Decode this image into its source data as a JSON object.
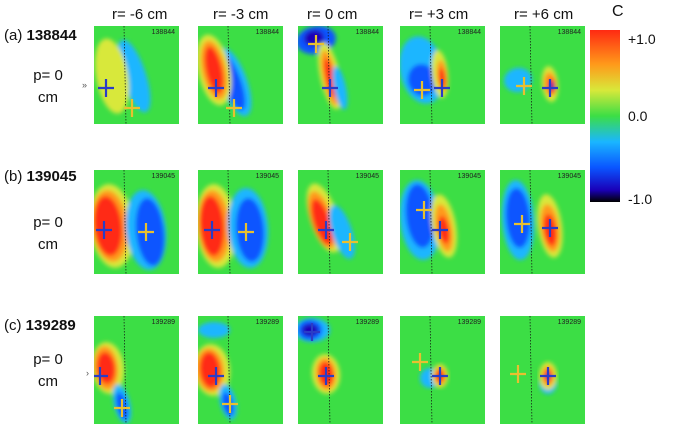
{
  "columns": [
    "r= -6 cm",
    "r= -3 cm",
    "r= 0 cm",
    "r= +3 cm",
    "r= +6 cm"
  ],
  "rows": [
    {
      "prefix": "(a) ",
      "shot": "138844",
      "p_label": "p= 0 cm",
      "p_line1": "p= 0",
      "p_line2": "cm",
      "marker": "»"
    },
    {
      "prefix": "(b) ",
      "shot": "139045",
      "p_label": "p= 0 cm",
      "p_line1": "p= 0",
      "p_line2": "cm",
      "marker": ""
    },
    {
      "prefix": "(c) ",
      "shot": "139289",
      "p_label": "p= 0 cm",
      "p_line1": "p= 0",
      "p_line2": "cm",
      "marker": "›"
    }
  ],
  "colorbar": {
    "title": "C",
    "ticks": [
      "+1.0",
      "0.0",
      "-1.0"
    ],
    "tick_values": [
      1.0,
      0.0,
      -1.0
    ],
    "colors": [
      "#000000",
      "#1a00b8",
      "#0a55ff",
      "#1ab6ff",
      "#3cde45",
      "#d8e83a",
      "#ff9a1a",
      "#ff2a12"
    ]
  }
}
